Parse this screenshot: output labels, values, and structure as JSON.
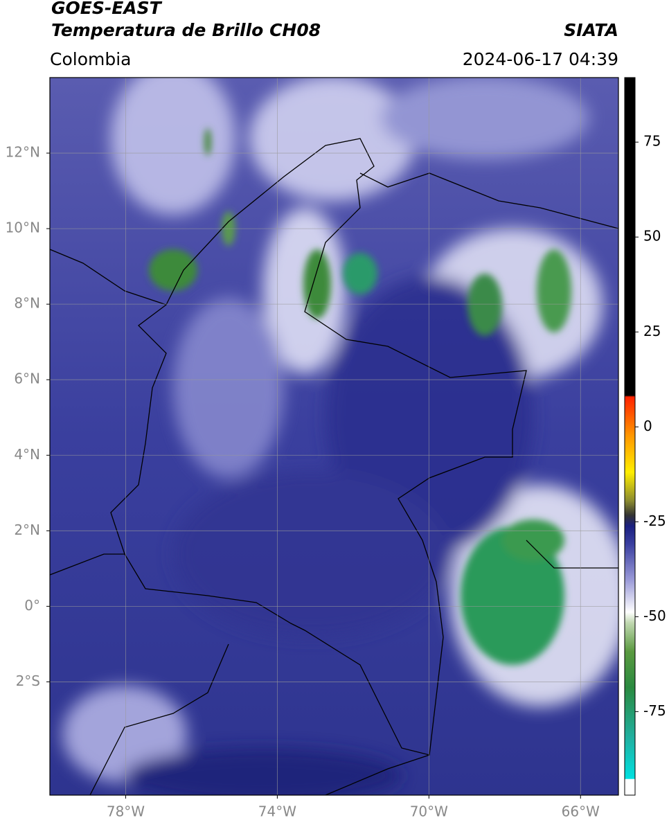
{
  "header": {
    "title": "GOES-EAST",
    "subtitle": "Temperatura de Brillo CH08",
    "source": "SIATA",
    "region": "Colombia",
    "datetime": "2024-06-17 04:39"
  },
  "map": {
    "xlim": [
      -80,
      -65
    ],
    "ylim": [
      -5,
      14
    ],
    "xticks": [
      {
        "value": -78,
        "label": "78°W"
      },
      {
        "value": -74,
        "label": "74°W"
      },
      {
        "value": -70,
        "label": "70°W"
      },
      {
        "value": -66,
        "label": "66°W"
      }
    ],
    "yticks": [
      {
        "value": 12,
        "label": "12°N"
      },
      {
        "value": 10,
        "label": "10°N"
      },
      {
        "value": 8,
        "label": "8°N"
      },
      {
        "value": 6,
        "label": "6°N"
      },
      {
        "value": 4,
        "label": "4°N"
      },
      {
        "value": 2,
        "label": "2°N"
      },
      {
        "value": 0,
        "label": "0°"
      },
      {
        "value": -2,
        "label": "2°S"
      }
    ],
    "grid": true
  },
  "colorbar": {
    "lim": [
      -97,
      92
    ],
    "ticks": [
      75,
      50,
      25,
      0,
      -25,
      -50,
      -75
    ]
  }
}
